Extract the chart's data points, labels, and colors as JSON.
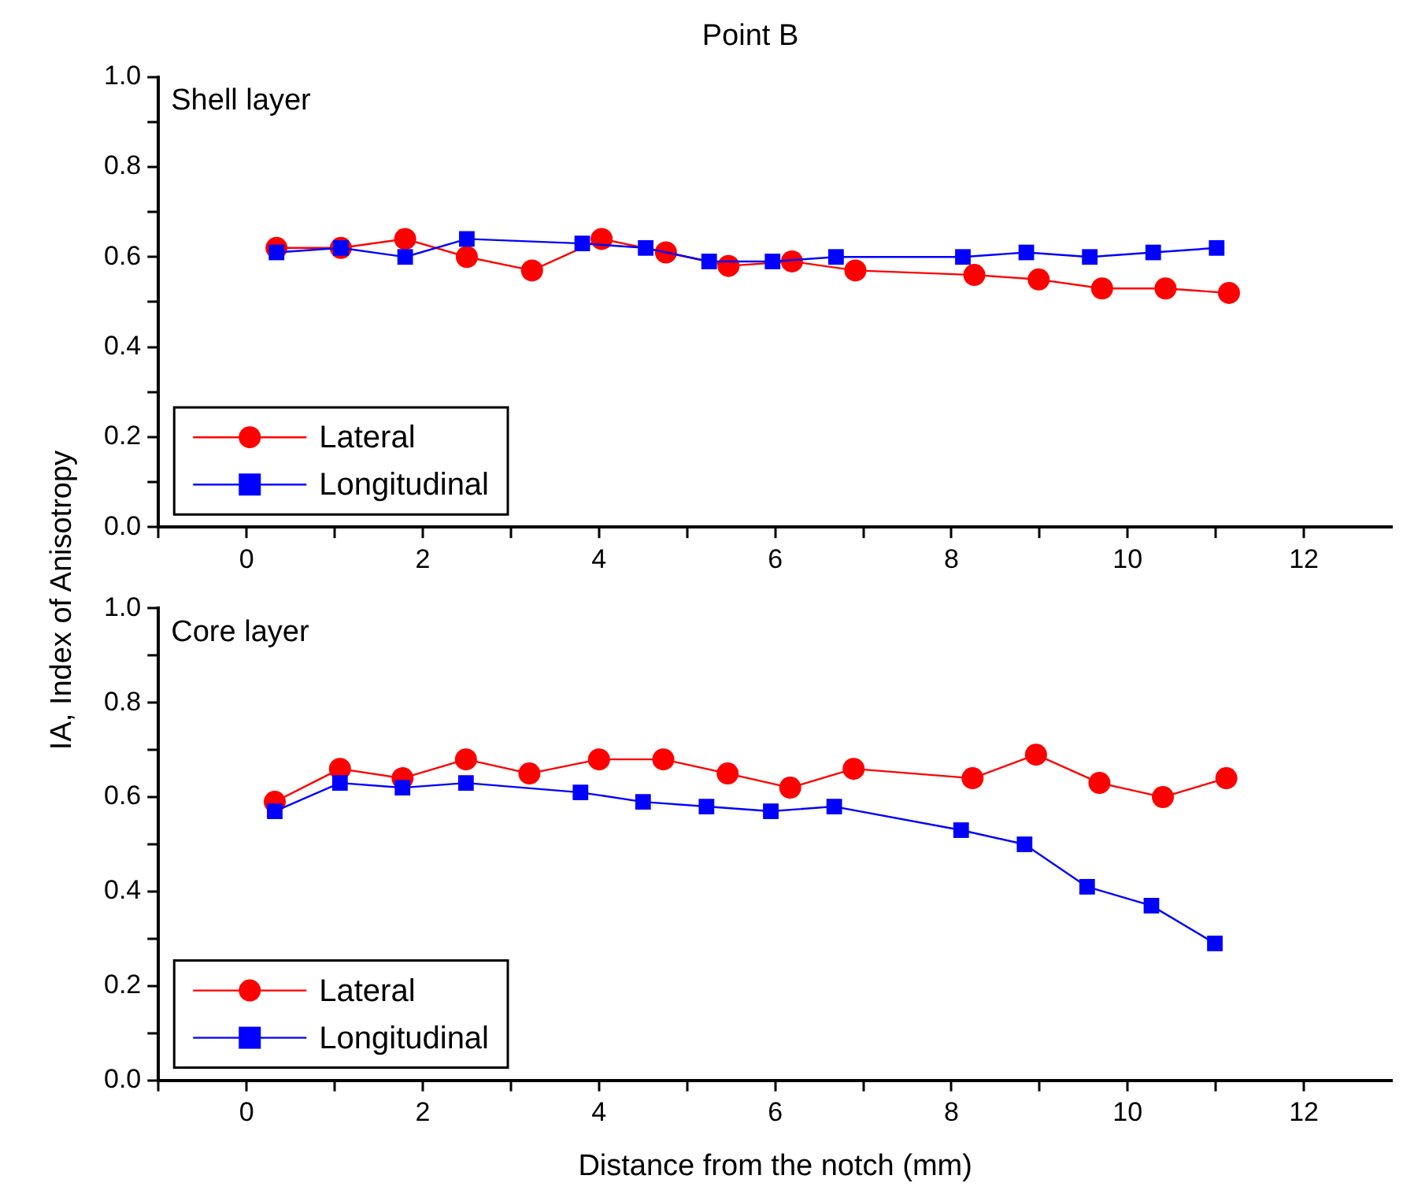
{
  "chart_data": [
    {
      "type": "line",
      "title": "Point B",
      "ylabel": "IA, Index of Anisotropy",
      "annotations": [
        "Shell layer"
      ],
      "legend": "bottom left",
      "line_style": "solid",
      "xlim": [
        -1,
        13
      ],
      "xticks": [
        {
          "value": -1,
          "label": null
        },
        0,
        {
          "value": 1,
          "label": null
        },
        2,
        {
          "value": 3,
          "label": null
        },
        4,
        {
          "value": 5,
          "label": null
        },
        6,
        {
          "value": 7,
          "label": null
        },
        8,
        {
          "value": 9,
          "label": null
        },
        10,
        {
          "value": 11,
          "label": null
        },
        12
      ],
      "ylim": [
        0,
        1
      ],
      "yticks": [
        {
          "value": 0,
          "label": "0.0"
        },
        {
          "value": 0.1,
          "label": null
        },
        0.2,
        {
          "value": 0.3,
          "label": null
        },
        0.4,
        {
          "value": 0.5,
          "label": null
        },
        0.6,
        {
          "value": 0.7,
          "label": null
        },
        0.8,
        {
          "value": 0.9,
          "label": null
        },
        {
          "value": 1,
          "label": "1.0"
        }
      ],
      "series": [
        {
          "name": "Lateral",
          "color": "#ff0000",
          "marker": "circle",
          "x": [
            0.34,
            1.07,
            1.8,
            2.5,
            3.24,
            4.03,
            4.76,
            5.47,
            6.19,
            6.91,
            8.26,
            8.99,
            9.71,
            10.43,
            11.15
          ],
          "values": [
            0.62,
            0.62,
            0.64,
            0.6,
            0.57,
            0.64,
            0.61,
            0.58,
            0.59,
            0.57,
            0.56,
            0.55,
            0.53,
            0.53,
            0.52
          ]
        },
        {
          "name": "Longitudinal",
          "color": "#0000ff",
          "marker": "square",
          "x": [
            0.34,
            1.07,
            1.8,
            2.5,
            3.81,
            4.53,
            5.25,
            5.97,
            6.69,
            8.13,
            8.85,
            9.57,
            10.29,
            11.01
          ],
          "values": [
            0.61,
            0.62,
            0.6,
            0.64,
            0.63,
            0.62,
            0.59,
            0.59,
            0.6,
            0.6,
            0.61,
            0.6,
            0.61,
            0.62
          ]
        }
      ]
    },
    {
      "type": "line",
      "xlabel": "Distance from the notch (mm)",
      "annotations": [
        "Core layer"
      ],
      "legend": "bottom left",
      "line_style": "solid",
      "xlim": [
        -1,
        13
      ],
      "xticks": [
        {
          "value": -1,
          "label": null
        },
        0,
        {
          "value": 1,
          "label": null
        },
        2,
        {
          "value": 3,
          "label": null
        },
        4,
        {
          "value": 5,
          "label": null
        },
        6,
        {
          "value": 7,
          "label": null
        },
        8,
        {
          "value": 9,
          "label": null
        },
        10,
        {
          "value": 11,
          "label": null
        },
        12
      ],
      "ylim": [
        0,
        1
      ],
      "yticks": [
        {
          "value": 0,
          "label": "0.0"
        },
        {
          "value": 0.1,
          "label": null
        },
        0.2,
        {
          "value": 0.3,
          "label": null
        },
        0.4,
        {
          "value": 0.5,
          "label": null
        },
        0.6,
        {
          "value": 0.7,
          "label": null
        },
        0.8,
        {
          "value": 0.9,
          "label": null
        },
        {
          "value": 1,
          "label": "1.0"
        }
      ],
      "series": [
        {
          "name": "Lateral",
          "color": "#ff0000",
          "marker": "circle",
          "x": [
            0.32,
            1.06,
            1.77,
            2.49,
            3.21,
            4.0,
            4.73,
            5.46,
            6.17,
            6.89,
            8.24,
            8.96,
            9.68,
            10.4,
            11.12
          ],
          "values": [
            0.59,
            0.66,
            0.64,
            0.68,
            0.65,
            0.68,
            0.68,
            0.65,
            0.62,
            0.66,
            0.64,
            0.69,
            0.63,
            0.6,
            0.64
          ]
        },
        {
          "name": "Longitudinal",
          "color": "#0000ff",
          "marker": "square",
          "x": [
            0.32,
            1.06,
            1.77,
            2.49,
            3.79,
            4.5,
            5.22,
            5.95,
            6.67,
            8.11,
            8.83,
            9.54,
            10.27,
            10.99
          ],
          "values": [
            0.57,
            0.63,
            0.62,
            0.63,
            0.61,
            0.59,
            0.58,
            0.57,
            0.58,
            0.53,
            0.5,
            0.41,
            0.37,
            0.29
          ]
        }
      ]
    }
  ]
}
